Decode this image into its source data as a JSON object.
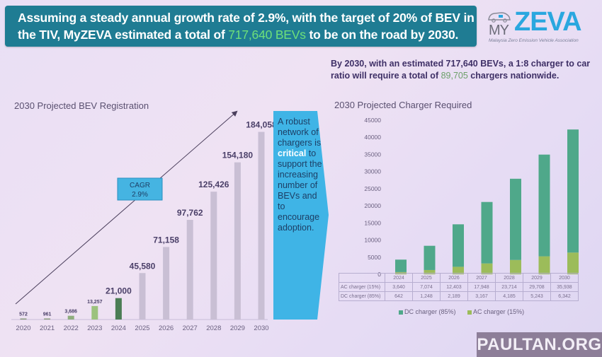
{
  "banner": {
    "line1": "Assuming a steady annual growth rate of 2.9%, with the target of 20% of BEV in",
    "line2_pre": "the TIV, MyZEVA estimated a total of ",
    "line2_highlight": "717,640 BEVs",
    "line2_post": " to be on the road by 2030."
  },
  "logo": {
    "my": "MY",
    "zeva": "ZEVA",
    "tagline": "Malaysia Zero Emission Vehicle Association",
    "icon": "ev-car-plug-icon"
  },
  "subnote": {
    "pre": "By 2030, with an estimated 717,640 BEVs, a 1:8 charger to car ratio will require a total of ",
    "highlight": "89,705",
    "post": " chargers nationwide."
  },
  "callout": {
    "pre": "A robust network of chargers is ",
    "highlight": "critical",
    "post": " to support the increasing number of BEVs and to encourage adoption."
  },
  "cagr": {
    "label": "CAGR",
    "value": "2.9%"
  },
  "watermark": "PAULTAN.ORG",
  "colors": {
    "banner": "#1f7c93",
    "highlight_green": "#6ee07a",
    "logo_blue": "#2aa7df",
    "callout": "#3fb4e6",
    "dc_bar": "#4fa88a",
    "ac_bar": "#9cbc5a"
  },
  "chart_data": [
    {
      "type": "bar",
      "title": "2030 Projected BEV Registration",
      "categories": [
        "2020",
        "2021",
        "2022",
        "2023",
        "2024",
        "2025",
        "2026",
        "2027",
        "2028",
        "2029",
        "2030"
      ],
      "values": [
        572,
        961,
        3686,
        13257,
        21000,
        45580,
        71158,
        97762,
        125426,
        154180,
        184058
      ],
      "labels": [
        "572",
        "961",
        "3,686",
        "13,257",
        "21,000",
        "45,580",
        "71,158",
        "97,762",
        "125,426",
        "154,180",
        "184,058"
      ],
      "bar_colors": [
        "#8a9c7c",
        "#8a9c7c",
        "#8fae7e",
        "#9cc27e",
        "#4b7d55",
        "#c9bfd4",
        "#c9bfd4",
        "#c9bfd4",
        "#c9bfd4",
        "#c9bfd4",
        "#c9bfd4"
      ],
      "annotation": "CAGR 2.9% trend arrow",
      "xlabel": "",
      "ylabel": "",
      "ylim": [
        0,
        190000
      ],
      "grid": false
    },
    {
      "type": "bar",
      "stacked": true,
      "title": "2030 Projected Charger Required",
      "categories": [
        "2024",
        "2025",
        "2026",
        "2027",
        "2028",
        "2029",
        "2030"
      ],
      "yticks": [
        "0",
        "5000",
        "10000",
        "15000",
        "20000",
        "25000",
        "30000",
        "35000",
        "40000",
        "45000"
      ],
      "ylim": [
        0,
        45000
      ],
      "series": [
        {
          "name": "AC charger (15%)",
          "table_label": "AC charger (15%)",
          "values": [
            3640,
            7074,
            12403,
            17948,
            23714,
            29708,
            35938
          ],
          "display": [
            "3,640",
            "7,074",
            "12,403",
            "17,948",
            "23,714",
            "29,708",
            "35,938"
          ]
        },
        {
          "name": "DC charger (85%)",
          "table_label": "DC charger (85%)",
          "values": [
            642,
            1248,
            2189,
            3167,
            4185,
            5243,
            6342
          ],
          "display": [
            "642",
            "1,248",
            "2,189",
            "3,167",
            "4,185",
            "5,243",
            "6,342"
          ]
        }
      ],
      "legend": [
        "DC charger (85%)",
        "AC charger (15%)"
      ],
      "legend_position": "bottom",
      "grid": false
    }
  ]
}
